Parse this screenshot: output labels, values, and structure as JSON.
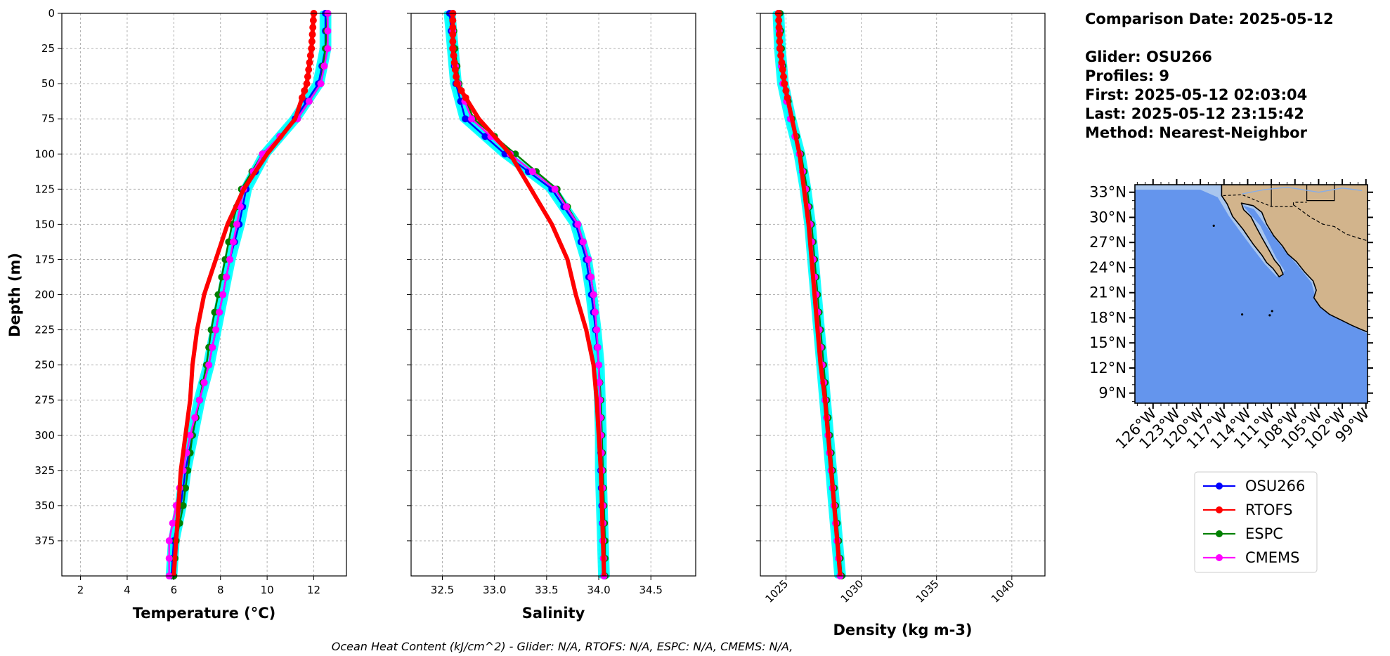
{
  "info": {
    "comparison_date": "Comparison Date: 2025-05-12",
    "glider": "Glider: OSU266",
    "profiles": "Profiles: 9",
    "first": "First: 2025-05-12 02:03:04",
    "last": "Last: 2025-05-12 23:15:42",
    "method": "Method: Nearest-Neighbor"
  },
  "footer": "Ocean Heat Content (kJ/cm^2) - Glider: N/A,  RTOFS: N/A,  ESPC: N/A,  CMEMS: N/A,",
  "colors": {
    "glider_spread": "#00FFFF",
    "osu266": "#0000FF",
    "rtofs": "#FF0000",
    "espc": "#008000",
    "cmems": "#FF00FF",
    "ocean": "#6495ED",
    "shelf": "#A9C6EE",
    "land": "#D2B48C"
  },
  "legend": [
    "OSU266",
    "RTOFS",
    "ESPC",
    "CMEMS"
  ],
  "chart_data": [
    {
      "type": "line",
      "ylabel": "Depth (m)",
      "xlabel": "Temperature (°C)",
      "xlim": [
        1.2,
        13.4
      ],
      "ylim": [
        400,
        0
      ],
      "xticks": [
        2,
        4,
        6,
        8,
        10,
        12
      ],
      "yticks": [
        0,
        25,
        50,
        75,
        100,
        125,
        150,
        175,
        200,
        225,
        250,
        275,
        300,
        325,
        350,
        375
      ],
      "grid": true,
      "depth": [
        0,
        25,
        50,
        75,
        100,
        125,
        150,
        175,
        200,
        225,
        250,
        275,
        300,
        325,
        350,
        375,
        400
      ],
      "series": [
        {
          "name": "OSU266",
          "values": [
            12.5,
            12.5,
            12.2,
            11.2,
            9.9,
            9.1,
            8.8,
            8.4,
            8.1,
            7.8,
            7.5,
            7.1,
            6.8,
            6.5,
            6.3,
            6.0,
            5.9
          ]
        },
        {
          "name": "RTOFS",
          "values": [
            12.0,
            11.9,
            11.7,
            11.2,
            10.0,
            9.0,
            8.3,
            7.8,
            7.3,
            7.0,
            6.8,
            6.7,
            6.5,
            6.3,
            6.2,
            6.1,
            6.0
          ]
        },
        {
          "name": "ESPC",
          "values": [
            12.6,
            12.5,
            12.3,
            11.3,
            9.8,
            8.9,
            8.5,
            8.2,
            7.9,
            7.6,
            7.4,
            7.1,
            6.8,
            6.6,
            6.4,
            6.1,
            6.0
          ]
        },
        {
          "name": "CMEMS",
          "values": [
            12.6,
            12.6,
            12.3,
            11.3,
            9.8,
            9.0,
            8.7,
            8.4,
            8.1,
            7.8,
            7.5,
            7.1,
            6.7,
            6.4,
            6.1,
            5.8,
            5.8
          ]
        }
      ]
    },
    {
      "type": "line",
      "xlabel": "Salinity",
      "xlim": [
        32.2,
        34.93
      ],
      "ylim": [
        400,
        0
      ],
      "xticks": [
        32.5,
        33.0,
        33.5,
        34.0,
        34.5
      ],
      "grid": true,
      "depth": [
        0,
        25,
        50,
        75,
        100,
        125,
        150,
        175,
        200,
        225,
        250,
        275,
        300,
        325,
        350,
        375,
        400
      ],
      "series": [
        {
          "name": "OSU266",
          "values": [
            32.57,
            32.6,
            32.63,
            32.72,
            33.1,
            33.55,
            33.78,
            33.88,
            33.93,
            33.97,
            34.0,
            34.01,
            34.02,
            34.02,
            34.03,
            34.04,
            34.05
          ]
        },
        {
          "name": "RTOFS",
          "values": [
            32.6,
            32.6,
            32.64,
            32.85,
            33.15,
            33.35,
            33.55,
            33.7,
            33.78,
            33.88,
            33.95,
            33.98,
            34.0,
            34.02,
            34.03,
            34.04,
            34.05
          ]
        },
        {
          "name": "ESPC",
          "values": [
            32.6,
            32.62,
            32.66,
            32.8,
            33.2,
            33.6,
            33.8,
            33.9,
            33.95,
            33.98,
            34.0,
            34.02,
            34.03,
            34.04,
            34.05,
            34.06,
            34.06
          ]
        },
        {
          "name": "CMEMS",
          "values": [
            32.6,
            32.6,
            32.65,
            32.78,
            33.15,
            33.58,
            33.8,
            33.9,
            33.95,
            33.98,
            34.0,
            34.01,
            34.02,
            34.03,
            34.04,
            34.04,
            34.05
          ]
        }
      ]
    },
    {
      "type": "line",
      "xlabel": "Density (kg m-3)",
      "xlim": [
        1023.3,
        1042.2
      ],
      "ylim": [
        400,
        0
      ],
      "xticks": [
        1025,
        1030,
        1035,
        1040
      ],
      "grid": true,
      "depth": [
        0,
        25,
        50,
        75,
        100,
        125,
        150,
        175,
        200,
        225,
        250,
        275,
        300,
        325,
        350,
        375,
        400
      ],
      "series": [
        {
          "name": "OSU266",
          "values": [
            1024.5,
            1024.6,
            1024.8,
            1025.3,
            1025.9,
            1026.3,
            1026.6,
            1026.8,
            1027.0,
            1027.2,
            1027.4,
            1027.6,
            1027.8,
            1028.0,
            1028.2,
            1028.4,
            1028.6
          ]
        },
        {
          "name": "RTOFS",
          "values": [
            1024.5,
            1024.6,
            1024.9,
            1025.4,
            1025.9,
            1026.2,
            1026.5,
            1026.7,
            1026.9,
            1027.1,
            1027.3,
            1027.6,
            1027.8,
            1028.0,
            1028.2,
            1028.4,
            1028.6
          ]
        },
        {
          "name": "ESPC",
          "values": [
            1024.6,
            1024.7,
            1024.9,
            1025.4,
            1026.0,
            1026.4,
            1026.7,
            1026.9,
            1027.1,
            1027.3,
            1027.5,
            1027.7,
            1027.9,
            1028.1,
            1028.3,
            1028.5,
            1028.7
          ]
        },
        {
          "name": "CMEMS",
          "values": [
            1024.5,
            1024.6,
            1024.8,
            1025.3,
            1025.9,
            1026.3,
            1026.6,
            1026.8,
            1027.0,
            1027.2,
            1027.4,
            1027.6,
            1027.8,
            1028.0,
            1028.2,
            1028.4,
            1028.6
          ]
        }
      ]
    }
  ],
  "map": {
    "lat_ticks": [
      "33°N",
      "30°N",
      "27°N",
      "24°N",
      "21°N",
      "18°N",
      "15°N",
      "12°N",
      "9°N"
    ],
    "lon_ticks": [
      "126°W",
      "123°W",
      "120°W",
      "117°W",
      "114°W",
      "111°W",
      "108°W",
      "105°W",
      "102°W",
      "99°W"
    ],
    "lat_values": [
      33,
      30,
      27,
      24,
      21,
      18,
      15,
      12,
      9
    ],
    "lon_values": [
      -126,
      -123,
      -120,
      -117,
      -114,
      -111,
      -108,
      -105,
      -102,
      -99
    ],
    "extent": {
      "lon": [
        -128.3,
        -98.8
      ],
      "lat": [
        7.8,
        33.9
      ]
    }
  }
}
